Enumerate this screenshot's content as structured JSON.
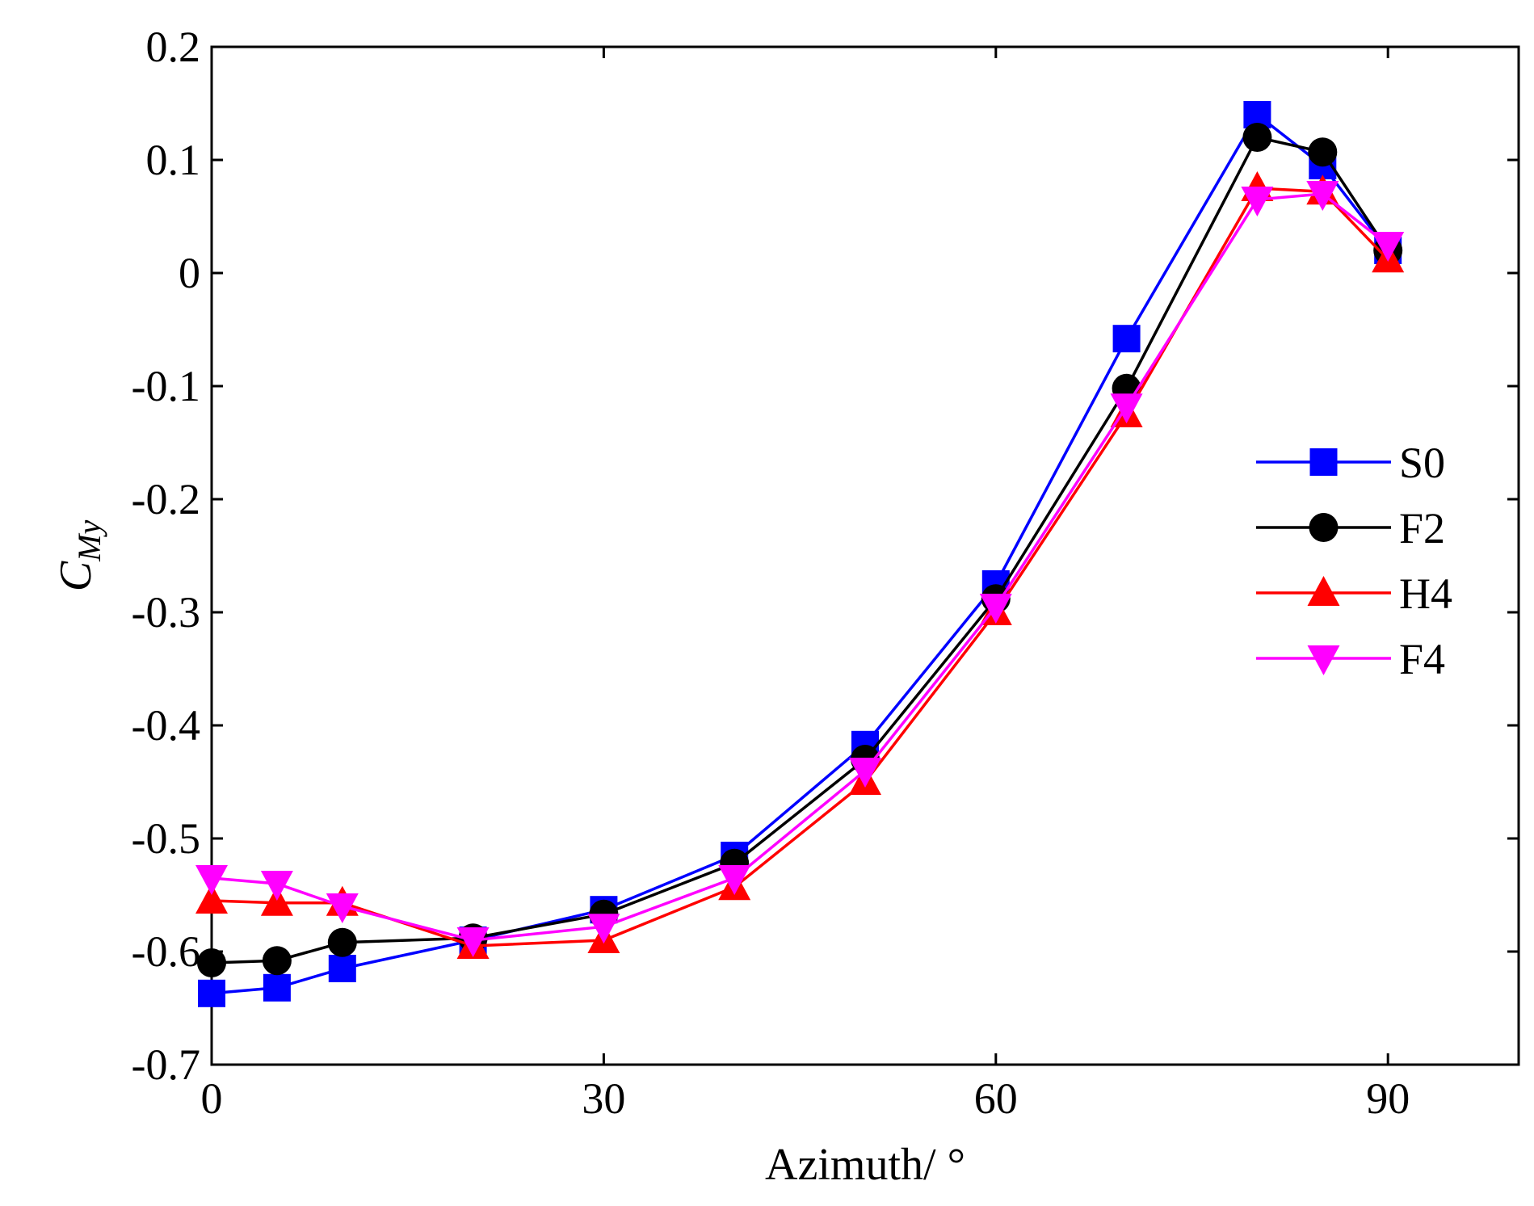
{
  "chart_data": {
    "type": "line",
    "title": "",
    "xlabel": "Azimuth/ °",
    "ylabel": "C",
    "ylabel_subscript": "My",
    "xlim": [
      0,
      100
    ],
    "ylim": [
      -0.7,
      0.2
    ],
    "x_ticks": [
      0,
      30,
      60,
      90
    ],
    "x_tick_labels": [
      "0",
      "30",
      "60",
      "90"
    ],
    "y_ticks": [
      0.2,
      0.1,
      0,
      -0.1,
      -0.2,
      -0.3,
      -0.4,
      -0.5,
      -0.6,
      -0.7
    ],
    "y_tick_labels": [
      "0.2",
      "0.1",
      "0",
      "-0.1",
      "-0.2",
      "-0.3",
      "-0.4",
      "-0.5",
      "-0.6",
      "-0.7"
    ],
    "grid": false,
    "legend_position": "right",
    "x": [
      0,
      5,
      10,
      20,
      30,
      40,
      50,
      60,
      70,
      80,
      85,
      90
    ],
    "series": [
      {
        "name": "S0",
        "color": "#0000ff",
        "marker": "square",
        "values": [
          -0.637,
          -0.632,
          -0.615,
          -0.59,
          -0.563,
          -0.515,
          -0.417,
          -0.275,
          -0.058,
          0.14,
          0.095,
          0.02
        ]
      },
      {
        "name": "F2",
        "color": "#000000",
        "marker": "circle",
        "values": [
          -0.61,
          -0.608,
          -0.592,
          -0.588,
          -0.567,
          -0.522,
          -0.43,
          -0.288,
          -0.102,
          0.12,
          0.107,
          0.02
        ]
      },
      {
        "name": "H4",
        "color": "#ff0000",
        "marker": "triangle-up",
        "values": [
          -0.555,
          -0.557,
          -0.557,
          -0.595,
          -0.59,
          -0.543,
          -0.45,
          -0.3,
          -0.125,
          0.075,
          0.072,
          0.012
        ]
      },
      {
        "name": "F4",
        "color": "#ff00ff",
        "marker": "triangle-down",
        "values": [
          -0.535,
          -0.54,
          -0.56,
          -0.59,
          -0.578,
          -0.535,
          -0.44,
          -0.295,
          -0.118,
          0.065,
          0.07,
          0.025
        ]
      }
    ]
  }
}
